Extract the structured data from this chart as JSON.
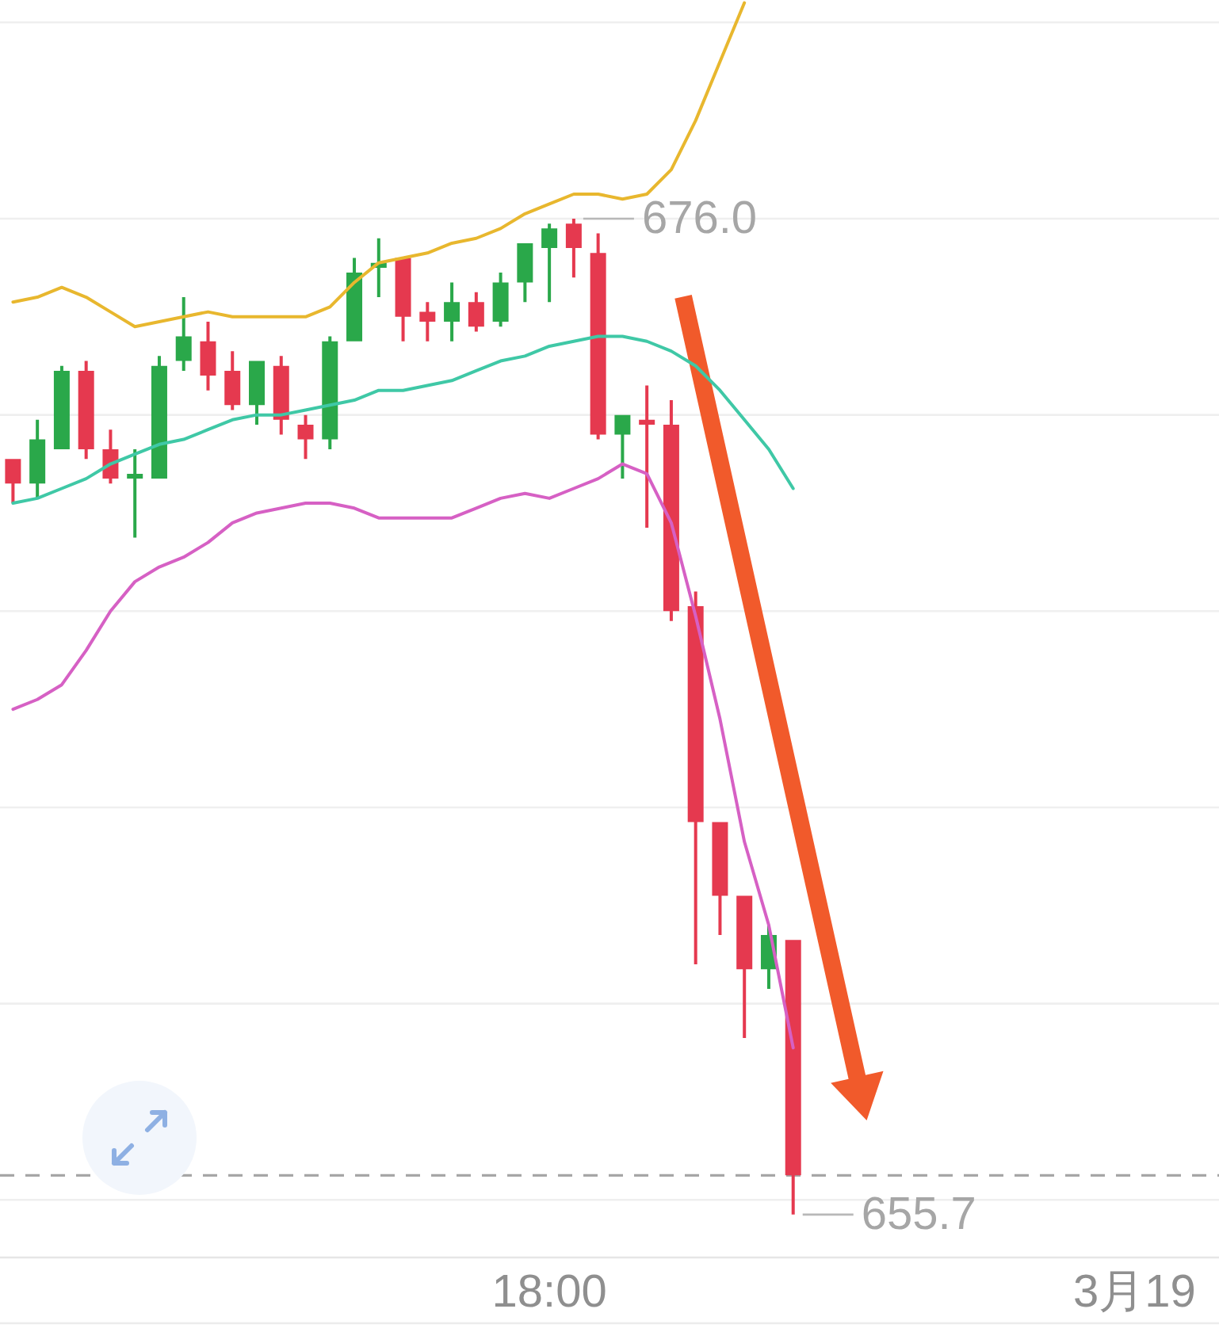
{
  "chart_data": {
    "type": "candlestick",
    "x": [
      "--03-18T12:30",
      "--03-18T12:45",
      "--03-18T13:00",
      "--03-18T13:15",
      "--03-18T13:30",
      "--03-18T13:45",
      "--03-18T14:00",
      "--03-18T14:15",
      "--03-18T14:30",
      "--03-18T14:45",
      "--03-18T15:00",
      "--03-18T15:15",
      "--03-18T15:30",
      "--03-18T15:45",
      "--03-18T16:00",
      "--03-18T16:15",
      "--03-18T16:30",
      "--03-18T16:45",
      "--03-18T17:00",
      "--03-18T17:15",
      "--03-18T17:30",
      "--03-18T17:45",
      "--03-18T18:00",
      "--03-18T18:15",
      "--03-18T18:30",
      "--03-18T18:45",
      "--03-18T19:00",
      "--03-18T19:15",
      "--03-18T19:30",
      "--03-18T19:45",
      "--03-18T20:00",
      "--03-18T20:15",
      "--03-18T20:30"
    ],
    "xlim": [
      "--03-18T12:22",
      "--03-19T00:52"
    ],
    "xticks": [
      {
        "value": "--03-18T18:00",
        "label": "18:00"
      },
      {
        "value": "--03-19",
        "label": "3月19"
      }
    ],
    "yticks": [
      {
        "value": 656,
        "label": null
      },
      {
        "value": 660,
        "label": null
      },
      {
        "value": 664,
        "label": null
      },
      {
        "value": 668,
        "label": null
      },
      {
        "value": 672,
        "label": null
      },
      {
        "value": 676,
        "label": null
      },
      {
        "value": 680,
        "label": null
      }
    ],
    "tick_labels": "x",
    "grid": "y",
    "ohlc": [
      [
        671.1,
        671.1,
        670.2,
        670.6
      ],
      [
        670.6,
        671.9,
        670.3,
        671.5
      ],
      [
        671.3,
        673.0,
        671.3,
        672.9
      ],
      [
        672.9,
        673.1,
        671.1,
        671.3
      ],
      [
        671.3,
        671.7,
        670.6,
        670.7
      ],
      [
        670.7,
        671.3,
        669.5,
        670.8
      ],
      [
        670.7,
        673.2,
        670.7,
        673.0
      ],
      [
        673.1,
        674.4,
        672.9,
        673.6
      ],
      [
        673.5,
        673.9,
        672.5,
        672.8
      ],
      [
        672.9,
        673.3,
        672.1,
        672.2
      ],
      [
        672.2,
        673.1,
        671.8,
        673.1
      ],
      [
        673.0,
        673.2,
        671.6,
        671.9
      ],
      [
        671.8,
        672.0,
        671.1,
        671.5
      ],
      [
        671.5,
        673.6,
        671.3,
        673.5
      ],
      [
        673.5,
        675.2,
        673.5,
        674.9
      ],
      [
        675.0,
        675.6,
        674.4,
        675.1
      ],
      [
        675.2,
        675.2,
        673.5,
        674.0
      ],
      [
        674.1,
        674.3,
        673.5,
        673.9
      ],
      [
        673.9,
        674.7,
        673.5,
        674.3
      ],
      [
        674.3,
        674.5,
        673.7,
        673.8
      ],
      [
        673.9,
        674.9,
        673.8,
        674.7
      ],
      [
        674.7,
        675.5,
        674.3,
        675.5
      ],
      [
        675.4,
        675.9,
        674.3,
        675.8
      ],
      [
        675.9,
        676.0,
        674.8,
        675.4
      ],
      [
        675.3,
        675.7,
        671.5,
        671.6
      ],
      [
        671.6,
        672.0,
        670.7,
        672.0
      ],
      [
        671.9,
        672.6,
        669.7,
        671.8
      ],
      [
        671.8,
        672.3,
        667.8,
        668.0
      ],
      [
        668.1,
        668.4,
        660.8,
        663.7
      ],
      [
        663.7,
        663.7,
        661.4,
        662.2
      ],
      [
        662.2,
        662.2,
        659.3,
        660.7
      ],
      [
        660.7,
        661.6,
        660.3,
        661.4
      ],
      [
        661.3,
        661.3,
        655.7,
        656.5
      ]
    ],
    "colors": [
      "#e5394f",
      "#2aa84a",
      "#2aa84a",
      "#e5394f",
      "#e5394f",
      "#2aa84a",
      "#2aa84a",
      "#2aa84a",
      "#e5394f",
      "#e5394f",
      "#2aa84a",
      "#e5394f",
      "#e5394f",
      "#2aa84a",
      "#2aa84a",
      "#2aa84a",
      "#e5394f",
      "#e5394f",
      "#2aa84a",
      "#e5394f",
      "#2aa84a",
      "#2aa84a",
      "#2aa84a",
      "#e5394f",
      "#e5394f",
      "#2aa84a",
      "#e5394f",
      "#e5394f",
      "#e5394f",
      "#e5394f",
      "#e5394f",
      "#2aa84a",
      "#e5394f"
    ],
    "series": [
      {
        "type": "line",
        "color": "#e8b72e",
        "values": [
          674.3,
          674.4,
          674.6,
          674.4,
          674.1,
          673.8,
          673.9,
          674.0,
          674.1,
          674.0,
          674.0,
          674.0,
          674.0,
          674.2,
          674.7,
          675.1,
          675.2,
          675.3,
          675.5,
          675.6,
          675.8,
          676.1,
          676.3,
          676.5,
          676.5,
          676.4,
          676.5,
          677.0,
          678.0,
          679.2,
          680.4,
          null,
          null
        ]
      },
      {
        "type": "line",
        "color": "#3fc8a6",
        "values": [
          670.2,
          670.3,
          670.5,
          670.7,
          671.0,
          671.2,
          671.4,
          671.5,
          671.7,
          671.9,
          672.0,
          672.0,
          672.1,
          672.2,
          672.3,
          672.5,
          672.5,
          672.6,
          672.7,
          672.9,
          673.1,
          673.2,
          673.4,
          673.5,
          673.6,
          673.6,
          673.5,
          673.3,
          673.0,
          672.5,
          671.9,
          671.3,
          670.5
        ]
      },
      {
        "type": "line",
        "color": "#d660c4",
        "values": [
          666.0,
          666.2,
          666.5,
          667.2,
          668.0,
          668.6,
          668.9,
          669.1,
          669.4,
          669.8,
          670.0,
          670.1,
          670.2,
          670.2,
          670.1,
          669.9,
          669.9,
          669.9,
          669.9,
          670.1,
          670.3,
          670.4,
          670.3,
          670.5,
          670.7,
          671.0,
          670.8,
          669.8,
          667.9,
          665.8,
          663.3,
          661.6,
          659.1
        ]
      }
    ],
    "ref_lines": [
      {
        "axis": "y",
        "value": 656.5,
        "color": "#a6a6a6",
        "line_style": "dashed"
      }
    ],
    "annotations": [
      {
        "text": "676.0",
        "x": "--03-18T18:15",
        "y": 676.0
      },
      {
        "text": "655.7",
        "x": "--03-18T20:30",
        "y": 655.7
      }
    ]
  }
}
